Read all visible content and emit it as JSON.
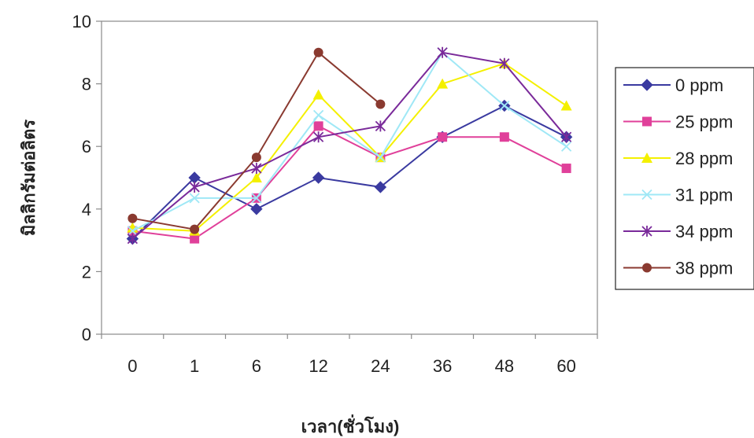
{
  "chart_data": {
    "type": "line",
    "title": "",
    "xlabel": "เวลา(ชั่วโมง)",
    "ylabel": "มิลลิกรัมต่อลิตร",
    "categories": [
      "0",
      "1",
      "6",
      "12",
      "24",
      "36",
      "48",
      "60"
    ],
    "ylim": [
      0,
      10
    ],
    "yticks": [
      0,
      2,
      4,
      6,
      8,
      10
    ],
    "grid": false,
    "legend_position": "right",
    "series": [
      {
        "name": "0  ppm",
        "color": "#3a3aa0",
        "marker": "diamond",
        "values": [
          3.05,
          5.0,
          4.0,
          5.0,
          4.7,
          6.3,
          7.3,
          6.3
        ]
      },
      {
        "name": "25  ppm",
        "color": "#e0409a",
        "marker": "square",
        "values": [
          3.3,
          3.05,
          4.35,
          6.65,
          5.65,
          6.3,
          6.3,
          5.3
        ]
      },
      {
        "name": "28  ppm",
        "color": "#f4f000",
        "marker": "triangle",
        "values": [
          3.4,
          3.3,
          5.0,
          7.65,
          5.65,
          8.0,
          8.65,
          7.3
        ]
      },
      {
        "name": "31  ppm",
        "color": "#9fe8f6",
        "marker": "x",
        "values": [
          3.3,
          4.35,
          4.35,
          7.0,
          5.65,
          9.0,
          7.3,
          6.0
        ]
      },
      {
        "name": "34  ppm",
        "color": "#7a2a9a",
        "marker": "star",
        "values": [
          3.05,
          4.7,
          5.3,
          6.3,
          6.65,
          9.0,
          8.65,
          6.3
        ]
      },
      {
        "name": "38  ppm",
        "color": "#8a3a30",
        "marker": "circle",
        "values": [
          3.7,
          3.35,
          5.65,
          9.0,
          7.35,
          null,
          null,
          null
        ]
      }
    ]
  }
}
